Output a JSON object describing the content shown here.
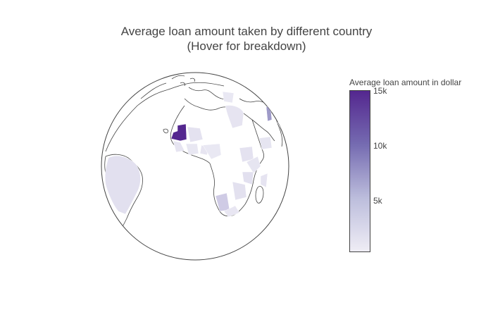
{
  "title_line1": "Average loan amount taken by different country",
  "title_line2": "(Hover for breakdown)",
  "colorbar": {
    "title": "Average loan amount in dollar",
    "ticks": [
      {
        "label": "15k",
        "value": 15000
      },
      {
        "label": "10k",
        "value": 10000
      },
      {
        "label": "5k",
        "value": 5000
      }
    ],
    "range": [
      0,
      15000
    ],
    "colors": [
      "#efedf5",
      "#bcbddc",
      "#756bb1",
      "#54278f"
    ]
  },
  "map": {
    "projection": "orthographic",
    "colorscale": "Purples"
  }
}
